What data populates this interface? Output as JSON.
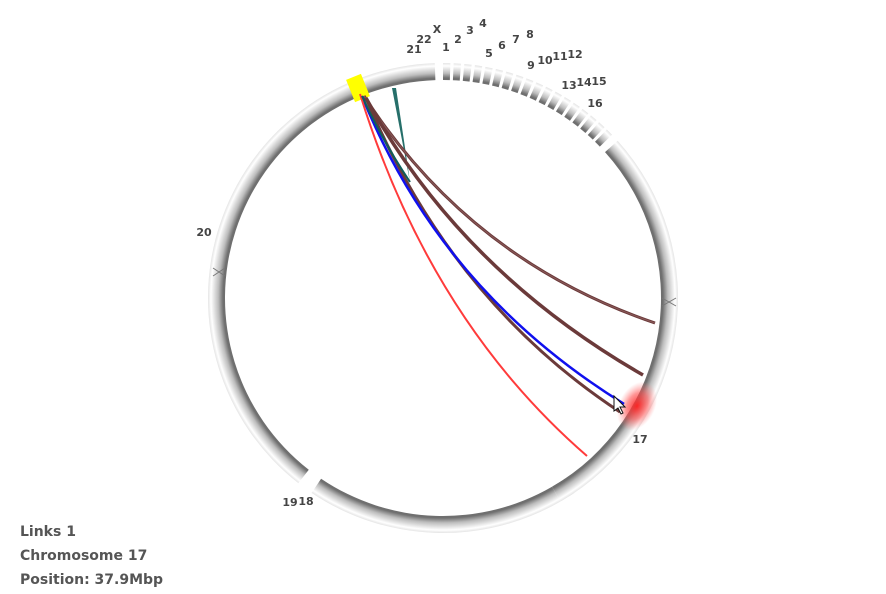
{
  "chromosomes": [
    "1",
    "2",
    "3",
    "4",
    "5",
    "6",
    "7",
    "8",
    "9",
    "10",
    "11",
    "12",
    "13",
    "14",
    "15",
    "16",
    "17",
    "18",
    "19",
    "20",
    "21",
    "22",
    "X"
  ],
  "info": {
    "links": "Links 1",
    "chromosome": "Chromosome 17",
    "position": "Position: 37.9Mbp"
  },
  "colors": {
    "ring": "#d8d8d8",
    "highlight_source": "#ffff00",
    "highlight_target": "#ff3030",
    "link_teal": "#0e5f5a",
    "link_brown": "#6b3a3a",
    "link_blue": "#1010ee",
    "link_red": "#ff3b3b"
  }
}
